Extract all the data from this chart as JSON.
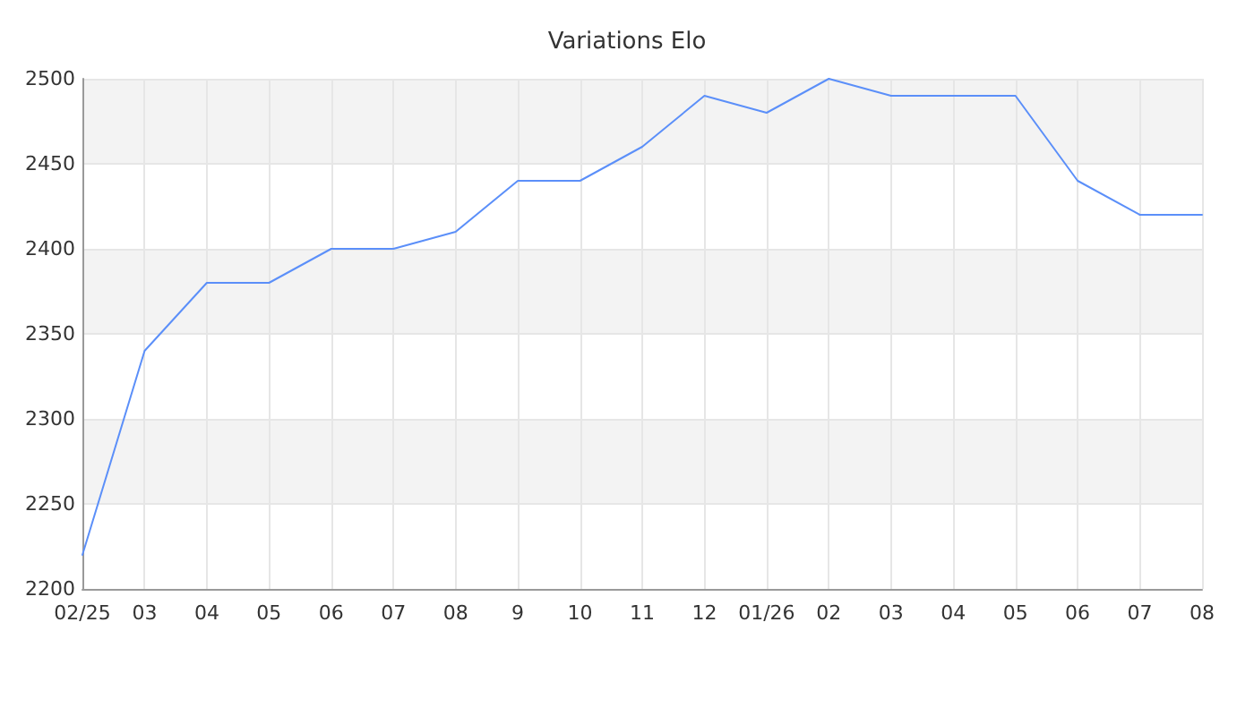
{
  "chart_data": {
    "type": "line",
    "title": "Variations Elo",
    "categories": [
      "02/25",
      "03",
      "04",
      "05",
      "06",
      "07",
      "08",
      "9",
      "10",
      "11",
      "12",
      "01/26",
      "02",
      "03",
      "04",
      "05",
      "06",
      "07",
      "08"
    ],
    "series": [
      {
        "color": "#5b8ff9",
        "values": [
          2220,
          2340,
          2380,
          2380,
          2400,
          2400,
          2410,
          2440,
          2440,
          2460,
          2490,
          2480,
          2500,
          2490,
          2490,
          2490,
          2440,
          2420,
          2420
        ]
      }
    ],
    "ylim": [
      2200,
      2500
    ],
    "yticks": [
      2200,
      2250,
      2300,
      2350,
      2400,
      2450,
      2500
    ],
    "grid": true,
    "marker": "none",
    "line_style": "solid"
  }
}
